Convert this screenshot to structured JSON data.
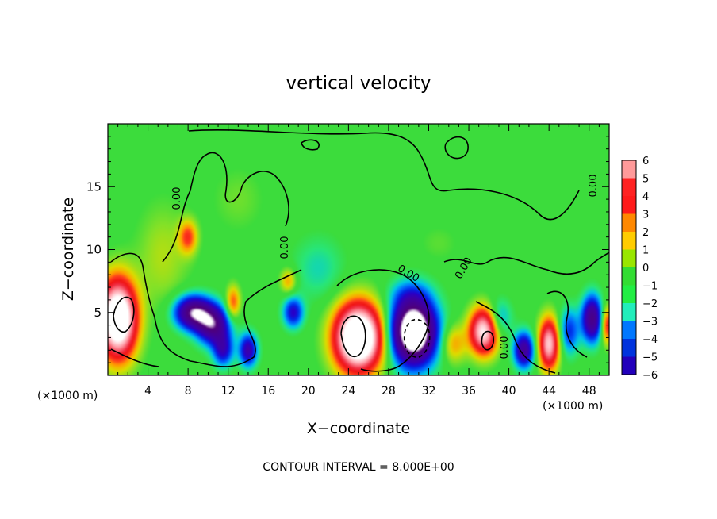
{
  "chart_data": {
    "type": "heatmap",
    "title": "vertical velocity",
    "xlabel": "X−coordinate",
    "ylabel": "Z−coordinate",
    "x_unit_left": "(×1000 m)",
    "x_unit_right": "(×1000 m)",
    "xlim": [
      0,
      50
    ],
    "ylim": [
      0,
      20
    ],
    "x_ticks": [
      4,
      8,
      12,
      16,
      20,
      24,
      28,
      32,
      36,
      40,
      44,
      48
    ],
    "x_tick_labels": [
      "4",
      "8",
      "12",
      "16",
      "20",
      "24",
      "28",
      "32",
      "36",
      "40",
      "44",
      "48"
    ],
    "y_ticks": [
      5,
      10,
      15
    ],
    "y_tick_labels": [
      "5",
      "10",
      "15"
    ],
    "colorbar": {
      "levels": [
        6,
        5,
        4,
        3,
        2,
        1,
        0,
        -1,
        -2,
        -3,
        -4,
        -5,
        -6
      ],
      "labels": [
        "6",
        "5",
        "4",
        "3",
        "2",
        "1",
        "0",
        "−1",
        "−2",
        "−3",
        "−4",
        "−5",
        "−6"
      ],
      "colors": [
        "#ff9a9a",
        "#ff2222",
        "#ff1a1a",
        "#ff8800",
        "#ffcc00",
        "#99e600",
        "#33dd33",
        "#22ee44",
        "#22eebb",
        "#0077ff",
        "#0033dd",
        "#2200bb",
        "#660099"
      ]
    },
    "background_value": 0,
    "cells": [
      {
        "x": 1.0,
        "z": 4.5,
        "value": 14,
        "sx": 1.8,
        "sz": 3.0
      },
      {
        "x": 5.5,
        "z": 9.5,
        "value": 1.5,
        "sx": 2.5,
        "sz": 4.0
      },
      {
        "x": 8.0,
        "z": 11.0,
        "value": 4,
        "sx": 0.9,
        "sz": 1.3
      },
      {
        "x": 8.5,
        "z": 5.0,
        "value": -9,
        "sx": 1.8,
        "sz": 1.3
      },
      {
        "x": 10.5,
        "z": 4.0,
        "value": -8,
        "sx": 1.6,
        "sz": 1.5
      },
      {
        "x": 11.5,
        "z": 2.0,
        "value": -5,
        "sx": 1.0,
        "sz": 1.3
      },
      {
        "x": 12.5,
        "z": 5.8,
        "value": 4,
        "sx": 0.7,
        "sz": 1.3
      },
      {
        "x": 14.0,
        "z": 2.0,
        "value": -6,
        "sx": 0.9,
        "sz": 1.3
      },
      {
        "x": 18.0,
        "z": 7.5,
        "value": 3,
        "sx": 0.8,
        "sz": 1.0
      },
      {
        "x": 18.5,
        "z": 5.0,
        "value": -5,
        "sx": 1.0,
        "sz": 1.2
      },
      {
        "x": 21.0,
        "z": 8.5,
        "value": -1.5,
        "sx": 2.5,
        "sz": 2.5
      },
      {
        "x": 25.0,
        "z": 3.0,
        "value": 15,
        "sx": 2.3,
        "sz": 2.6
      },
      {
        "x": 30.5,
        "z": 3.5,
        "value": -14,
        "sx": 2.2,
        "sz": 2.6
      },
      {
        "x": 34.5,
        "z": 2.5,
        "value": 3,
        "sx": 1.2,
        "sz": 1.5
      },
      {
        "x": 37.5,
        "z": 3.5,
        "value": 10,
        "sx": 1.4,
        "sz": 1.8
      },
      {
        "x": 39.0,
        "z": 4.5,
        "value": -3,
        "sx": 1.2,
        "sz": 1.5
      },
      {
        "x": 41.5,
        "z": 2.0,
        "value": -7,
        "sx": 1.0,
        "sz": 1.4
      },
      {
        "x": 44.0,
        "z": 2.5,
        "value": 9,
        "sx": 1.0,
        "sz": 2.0
      },
      {
        "x": 46.0,
        "z": 3.5,
        "value": -4,
        "sx": 1.0,
        "sz": 1.8
      },
      {
        "x": 48.3,
        "z": 4.5,
        "value": -8,
        "sx": 1.0,
        "sz": 1.8
      },
      {
        "x": 49.8,
        "z": 4.0,
        "value": 5,
        "sx": 0.6,
        "sz": 1.5
      },
      {
        "x": 13.0,
        "z": 14.0,
        "value": 0.8,
        "sx": 2.5,
        "sz": 2.5
      },
      {
        "x": 33.0,
        "z": 10.5,
        "value": 0.6,
        "sx": 2.0,
        "sz": 1.5
      },
      {
        "x": 30.0,
        "z": 6.5,
        "value": -1.5,
        "sx": 2.0,
        "sz": 1.2
      }
    ],
    "contour_labels": [
      "0.00",
      "0.00",
      "0.00",
      "0.00",
      "0.00",
      "0.00"
    ],
    "footer": "CONTOUR INTERVAL = 8.000E+00"
  }
}
